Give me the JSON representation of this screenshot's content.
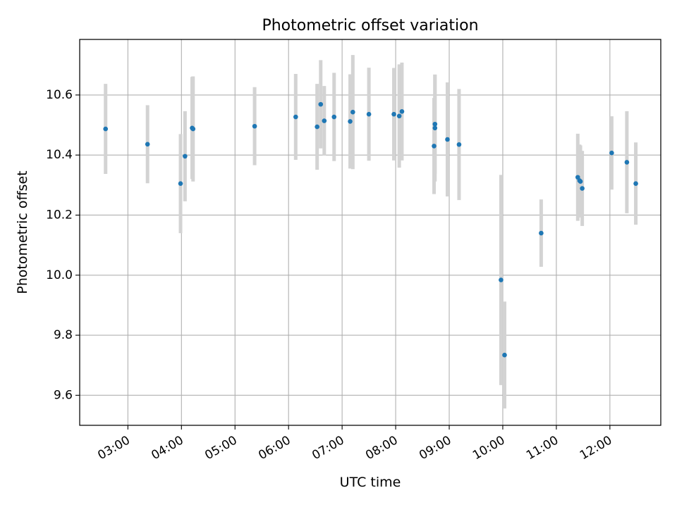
{
  "chart_data": {
    "type": "scatter",
    "title": "Photometric offset variation",
    "xlabel": "UTC time",
    "ylabel": "Photometric offset",
    "x_unit": "UTC hours",
    "xlim": [
      "02:06",
      "12:57"
    ],
    "ylim": [
      9.5,
      10.785
    ],
    "x_ticks": [
      "03:00",
      "04:00",
      "05:00",
      "06:00",
      "07:00",
      "08:00",
      "09:00",
      "10:00",
      "11:00",
      "12:00"
    ],
    "y_ticks": [
      "9.6",
      "9.8",
      "10.0",
      "10.2",
      "10.4",
      "10.6"
    ],
    "grid": true,
    "series": [
      {
        "marker_color": "#1f77b4",
        "errorbar_color": "#d3d3d3",
        "points": [
          {
            "t": "02:35",
            "y": 10.487,
            "yerr": 0.15
          },
          {
            "t": "03:22",
            "y": 10.436,
            "yerr": 0.13
          },
          {
            "t": "03:59",
            "y": 10.305,
            "yerr": 0.165
          },
          {
            "t": "04:04",
            "y": 10.396,
            "yerr": 0.15
          },
          {
            "t": "04:12",
            "y": 10.49,
            "yerr": 0.17
          },
          {
            "t": "04:13",
            "y": 10.487,
            "yerr": 0.175
          },
          {
            "t": "05:22",
            "y": 10.496,
            "yerr": 0.13
          },
          {
            "t": "06:08",
            "y": 10.527,
            "yerr": 0.143
          },
          {
            "t": "06:32",
            "y": 10.494,
            "yerr": 0.143
          },
          {
            "t": "06:36",
            "y": 10.569,
            "yerr": 0.147
          },
          {
            "t": "06:40",
            "y": 10.514,
            "yerr": 0.116
          },
          {
            "t": "06:51",
            "y": 10.527,
            "yerr": 0.147
          },
          {
            "t": "07:09",
            "y": 10.512,
            "yerr": 0.157
          },
          {
            "t": "07:12",
            "y": 10.543,
            "yerr": 0.19
          },
          {
            "t": "07:30",
            "y": 10.536,
            "yerr": 0.155
          },
          {
            "t": "07:58",
            "y": 10.536,
            "yerr": 0.154
          },
          {
            "t": "08:04",
            "y": 10.53,
            "yerr": 0.172
          },
          {
            "t": "08:07",
            "y": 10.545,
            "yerr": 0.163
          },
          {
            "t": "08:43",
            "y": 10.43,
            "yerr": 0.16
          },
          {
            "t": "08:44",
            "y": 10.503,
            "yerr": 0.165
          },
          {
            "t": "08:44",
            "y": 10.49,
            "yerr": 0.178
          },
          {
            "t": "08:58",
            "y": 10.452,
            "yerr": 0.19
          },
          {
            "t": "09:11",
            "y": 10.435,
            "yerr": 0.185
          },
          {
            "t": "09:58",
            "y": 9.984,
            "yerr": 0.35
          },
          {
            "t": "10:02",
            "y": 9.734,
            "yerr": 0.178
          },
          {
            "t": "10:43",
            "y": 10.14,
            "yerr": 0.112
          },
          {
            "t": "11:24",
            "y": 10.326,
            "yerr": 0.145
          },
          {
            "t": "11:26",
            "y": 10.315,
            "yerr": 0.12
          },
          {
            "t": "11:27",
            "y": 10.312,
            "yerr": 0.12
          },
          {
            "t": "11:29",
            "y": 10.289,
            "yerr": 0.125
          },
          {
            "t": "12:02",
            "y": 10.407,
            "yerr": 0.122
          },
          {
            "t": "12:19",
            "y": 10.376,
            "yerr": 0.17
          },
          {
            "t": "12:29",
            "y": 10.305,
            "yerr": 0.137
          }
        ]
      }
    ]
  }
}
